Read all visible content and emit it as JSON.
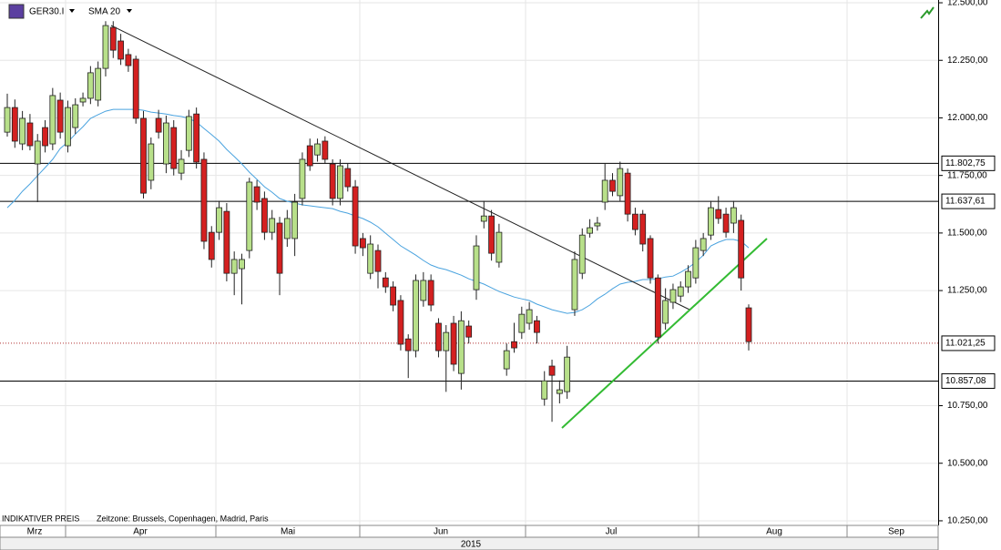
{
  "chart_data": {
    "type": "candlestick",
    "title": "GER30.I",
    "up_color": "#b8e08a",
    "down_color": "#d42020",
    "open": [
      11938,
      12045,
      11887,
      11978,
      11800,
      11958,
      11887,
      12077,
      11879,
      11958,
      12069,
      12085,
      12077,
      12215,
      12393,
      12334,
      12275,
      12255,
      11998,
      11729,
      11998,
      11800,
      11958,
      11760,
      11859,
      12017,
      11820,
      11503,
      11503,
      11594,
      11325,
      11345,
      11424,
      11701,
      11650,
      11503,
      11543,
      11476,
      11476,
      11650,
      11879,
      11839,
      11899,
      11800,
      11650,
      11780,
      11701,
      11476,
      11325,
      11424,
      11305,
      11266,
      11207,
      11040,
      10989,
      11207,
      11294,
      11108,
      10989,
      11108,
      10890,
      11096,
      11254,
      11551,
      11574,
      11373,
      10910,
      11028,
      11068,
      11108,
      11119,
      10779,
      10922,
      10803,
      10811,
      11167,
      11325,
      11499,
      11531,
      11634,
      11729,
      11662,
      11760,
      11582,
      11582,
      11476,
      11305,
      11108,
      11199,
      11226,
      11266,
      11305,
      11424,
      11491,
      11602,
      11582,
      11543,
      11555,
      11175
    ],
    "high": [
      12105,
      12080,
      12030,
      12017,
      11930,
      11990,
      12130,
      12110,
      12075,
      12085,
      12110,
      12225,
      12245,
      12420,
      12420,
      12365,
      12300,
      12270,
      12030,
      11915,
      12035,
      12010,
      11990,
      11860,
      12035,
      12045,
      11850,
      11530,
      11640,
      11630,
      11420,
      11410,
      11740,
      11730,
      11680,
      11600,
      11570,
      11600,
      11670,
      11850,
      11910,
      11910,
      11920,
      11820,
      11820,
      11800,
      11730,
      11500,
      11490,
      11450,
      11330,
      11290,
      11230,
      11060,
      11320,
      11330,
      11320,
      11130,
      11100,
      11140,
      11160,
      11120,
      11490,
      11640,
      11600,
      11540,
      11020,
      11110,
      11180,
      11200,
      11140,
      10900,
      10950,
      10860,
      11010,
      11420,
      11520,
      11560,
      11570,
      11800,
      11760,
      11810,
      11780,
      11610,
      11600,
      11490,
      11320,
      11260,
      11280,
      11290,
      11360,
      11470,
      11500,
      11640,
      11660,
      11610,
      11640,
      11580,
      11190
    ],
    "low": [
      11919,
      11870,
      11860,
      11859,
      11634,
      11850,
      11860,
      11910,
      11850,
      11930,
      12050,
      12060,
      12050,
      12180,
      12260,
      12230,
      12200,
      11975,
      11650,
      11690,
      11910,
      11760,
      11750,
      11730,
      11830,
      11780,
      11430,
      11350,
      11470,
      11290,
      11230,
      11190,
      11390,
      11600,
      11470,
      11470,
      11230,
      11440,
      11400,
      11620,
      11770,
      11810,
      11800,
      11620,
      11620,
      11680,
      11410,
      11400,
      11300,
      11260,
      11240,
      11160,
      10990,
      10870,
      10960,
      11180,
      11160,
      10960,
      10810,
      10900,
      10820,
      11020,
      11210,
      11520,
      11380,
      11350,
      10880,
      10980,
      11040,
      11080,
      11020,
      10750,
      10680,
      10760,
      10780,
      11140,
      11300,
      11480,
      11510,
      11600,
      11660,
      11640,
      11550,
      11490,
      11420,
      11280,
      11020,
      11080,
      11170,
      11200,
      11240,
      11280,
      11400,
      11470,
      11540,
      11480,
      11500,
      11250,
      10990
    ],
    "close": [
      12045,
      11899,
      11998,
      11879,
      11899,
      11879,
      12097,
      11938,
      12045,
      12057,
      12085,
      12196,
      12215,
      12401,
      12294,
      12255,
      12227,
      11998,
      11673,
      11887,
      11938,
      11978,
      11780,
      11820,
      12006,
      11808,
      11464,
      11385,
      11610,
      11325,
      11385,
      11385,
      11721,
      11634,
      11503,
      11563,
      11325,
      11563,
      11634,
      11820,
      11792,
      11887,
      11820,
      11650,
      11792,
      11701,
      11444,
      11436,
      11452,
      11333,
      11266,
      11187,
      11017,
      10989,
      11294,
      11294,
      11187,
      10989,
      11068,
      10930,
      11119,
      11048,
      11444,
      11574,
      11412,
      11503,
      10989,
      11001,
      11147,
      11167,
      11068,
      10858,
      10882,
      10819,
      10961,
      11385,
      11491,
      11523,
      11543,
      11729,
      11681,
      11780,
      11582,
      11515,
      11452,
      11305,
      11048,
      11207,
      11254,
      11266,
      11333,
      11436,
      11476,
      11610,
      11563,
      11503,
      11610,
      11305,
      11028
    ],
    "series": [
      {
        "name": "SMA 20",
        "color": "#4aa3df",
        "values": [
          11610,
          11642,
          11681,
          11713,
          11749,
          11784,
          11820,
          11867,
          11895,
          11930,
          11962,
          11998,
          12014,
          12029,
          12037,
          12037,
          12037,
          12037,
          12033,
          12025,
          12021,
          12017,
          12010,
          12006,
          11998,
          11982,
          11954,
          11927,
          11899,
          11863,
          11832,
          11800,
          11764,
          11733,
          11701,
          11677,
          11650,
          11638,
          11630,
          11622,
          11618,
          11614,
          11610,
          11606,
          11594,
          11586,
          11574,
          11563,
          11547,
          11527,
          11499,
          11472,
          11444,
          11424,
          11404,
          11381,
          11361,
          11349,
          11341,
          11329,
          11317,
          11301,
          11290,
          11278,
          11262,
          11246,
          11234,
          11222,
          11214,
          11207,
          11191,
          11179,
          11167,
          11159,
          11151,
          11155,
          11167,
          11187,
          11214,
          11234,
          11258,
          11278,
          11286,
          11290,
          11298,
          11298,
          11301,
          11309,
          11313,
          11329,
          11349,
          11373,
          11404,
          11444,
          11460,
          11472,
          11472,
          11464,
          11436
        ]
      }
    ],
    "ylim": [
      10230,
      12512
    ],
    "yticks": [
      {
        "value": 12500,
        "label": "12.500,00"
      },
      {
        "value": 12250,
        "label": "12.250,00"
      },
      {
        "value": 12000,
        "label": "12.000,00"
      },
      {
        "value": 11750,
        "label": "11.750,00"
      },
      {
        "value": 11500,
        "label": "11.500,00"
      },
      {
        "value": 11250,
        "label": "11.250,00"
      },
      {
        "value": 10750,
        "label": "10.750,00"
      },
      {
        "value": 10500,
        "label": "10.500,00"
      },
      {
        "value": 10250,
        "label": "10.250,00"
      }
    ],
    "grid": true,
    "levels": [
      {
        "value": 11802.75,
        "label": "11.802,75",
        "style": "solid"
      },
      {
        "value": 11637.61,
        "label": "11.637,61",
        "style": "solid"
      },
      {
        "value": 11021.25,
        "label": "11.021,25",
        "style": "dotted"
      },
      {
        "value": 10857.08,
        "label": "10.857,08",
        "style": "solid"
      }
    ],
    "months": [
      "Mrz",
      "Apr",
      "Mai",
      "Jun",
      "Jul",
      "Aug",
      "Sep"
    ],
    "year": "2015",
    "price_note": "INDIKATIVER PREIS",
    "timezone_note": "Zeitzone: Brussels, Copenhagen, Madrid, Paris"
  }
}
